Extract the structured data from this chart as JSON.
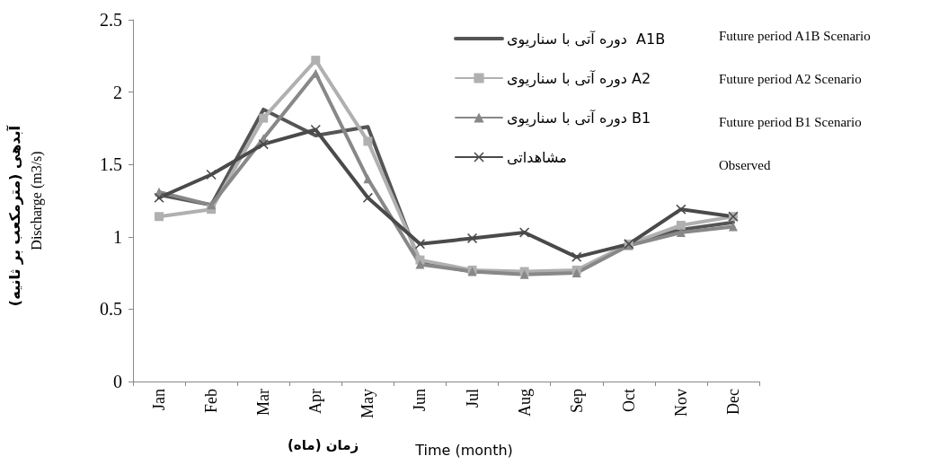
{
  "chart_data": {
    "type": "line",
    "xlabel": "Time (month)",
    "ylabel": "Discharge (m3/s)",
    "categories": [
      "Jan",
      "Feb",
      "Mar",
      "Apr",
      "May",
      "Jun",
      "Jul",
      "Aug",
      "Sep",
      "Oct",
      "Nov",
      "Dec"
    ],
    "series": [
      {
        "name": "دوره آتی با سناریوی  A1B",
        "color": "#555555",
        "marker": "none",
        "values": [
          1.29,
          1.22,
          1.88,
          1.7,
          1.76,
          0.82,
          0.76,
          0.75,
          0.76,
          0.95,
          1.05,
          1.1
        ]
      },
      {
        "name": "دوره آتی با سناریوی A2",
        "color": "#b0b0b0",
        "marker": "square",
        "values": [
          1.14,
          1.19,
          1.82,
          2.22,
          1.66,
          0.84,
          0.77,
          0.76,
          0.77,
          0.95,
          1.08,
          1.14
        ]
      },
      {
        "name": "دوره آتی با سناریوی B1",
        "color": "#888888",
        "marker": "triangle",
        "values": [
          1.31,
          1.22,
          1.68,
          2.13,
          1.4,
          0.81,
          0.76,
          0.74,
          0.75,
          0.94,
          1.03,
          1.07
        ]
      },
      {
        "name": "مشاهداتی",
        "color": "#4a4a4a",
        "marker": "cross",
        "values": [
          1.27,
          1.43,
          1.64,
          1.74,
          1.27,
          0.95,
          0.99,
          1.03,
          0.86,
          0.95,
          1.19,
          1.14
        ]
      }
    ],
    "ylim": [
      0,
      2.5
    ],
    "yticks": [
      0,
      0.5,
      1,
      1.5,
      2,
      2.5
    ],
    "grid": false,
    "legend": "top right",
    "line_style": "solid",
    "annotations": [
      "Future period A1B Scenario",
      "Future period A2 Scenario",
      "Future period B1 Scenario",
      "Observed",
      "آبدهی (مترمکعب بر ثانیه)",
      "زمان (ماه)"
    ]
  }
}
